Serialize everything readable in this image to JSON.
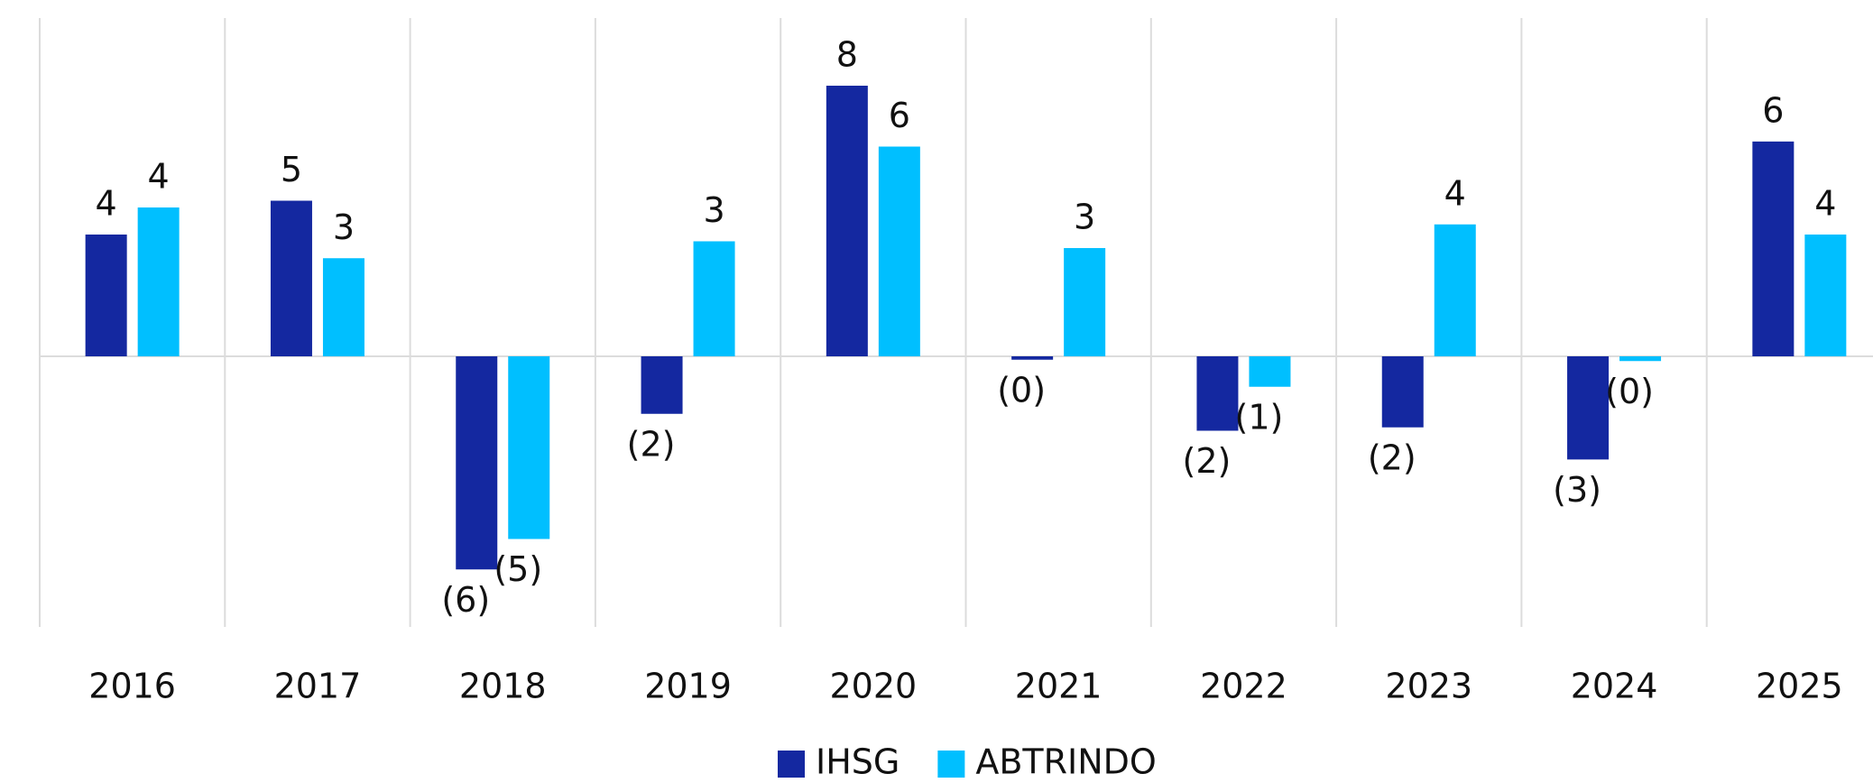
{
  "chart_data": {
    "type": "bar",
    "categories": [
      "2016",
      "2017",
      "2018",
      "2019",
      "2020",
      "2021",
      "2022",
      "2023",
      "2024",
      "2025"
    ],
    "series": [
      {
        "name": "IHSG",
        "color": "#1428a0",
        "values": [
          3.6,
          4.6,
          -6.3,
          -1.7,
          8.0,
          -0.1,
          -2.2,
          -2.1,
          -3.05,
          6.35
        ],
        "value_labels": [
          "4",
          "5",
          "(6)",
          "(2)",
          "8",
          "(0)",
          "(2)",
          "(2)",
          "(3)",
          "6"
        ]
      },
      {
        "name": "ABTRINDO",
        "color": "#00bfff",
        "values": [
          4.4,
          2.9,
          -5.4,
          3.4,
          6.2,
          3.2,
          -0.9,
          3.9,
          -0.14,
          3.6
        ],
        "value_labels": [
          "4",
          "3",
          "(5)",
          "3",
          "6",
          "3",
          "(1)",
          "4",
          "(0)",
          "4"
        ]
      }
    ],
    "ylim": [
      -8,
      10
    ],
    "legend": "bottom"
  }
}
